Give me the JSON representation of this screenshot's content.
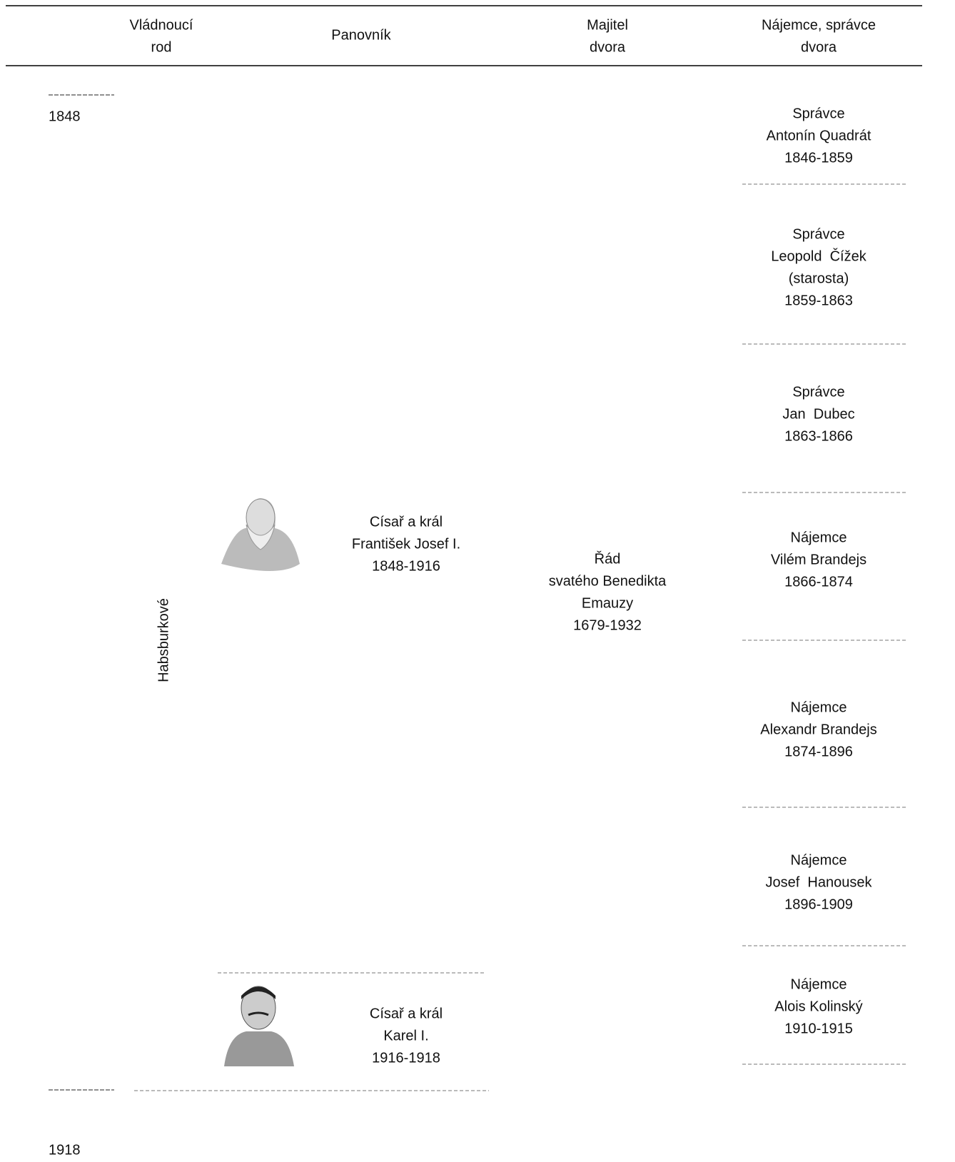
{
  "header": {
    "columns": [
      [
        "Vládnoucí",
        "rod"
      ],
      [
        "Panovník"
      ],
      [
        "Majitel",
        "dvora"
      ],
      [
        "Nájemce, správce",
        "dvora"
      ]
    ]
  },
  "years": {
    "start": "1848",
    "end": "1918"
  },
  "dynasty": "Habsburkové",
  "rulers": [
    {
      "lines": [
        "Císař a král",
        "František Josef I.",
        "1848-1916"
      ]
    },
    {
      "lines": [
        "Císař a král",
        "Karel I.",
        "1916-1918"
      ]
    }
  ],
  "owner": {
    "lines": [
      "Řád",
      "svatého Benedikta",
      "Emauzy",
      "1679-1932"
    ]
  },
  "tenants": [
    {
      "lines": [
        "Správce",
        "Antonín Quadrát",
        "1846-1859"
      ]
    },
    {
      "lines": [
        "Správce",
        "Leopold  Čížek",
        "(starosta)",
        "1859-1863"
      ]
    },
    {
      "lines": [
        "Správce",
        "Jan  Dubec",
        "1863-1866"
      ]
    },
    {
      "lines": [
        "Nájemce",
        "Vilém Brandejs",
        "1866-1874"
      ]
    },
    {
      "lines": [
        "Nájemce",
        "Alexandr Brandejs",
        "1874-1896"
      ]
    },
    {
      "lines": [
        "Nájemce",
        "Josef  Hanousek",
        "1896-1909"
      ]
    },
    {
      "lines": [
        "Nájemce",
        "Alois Kolinský",
        "1910-1915"
      ]
    }
  ]
}
